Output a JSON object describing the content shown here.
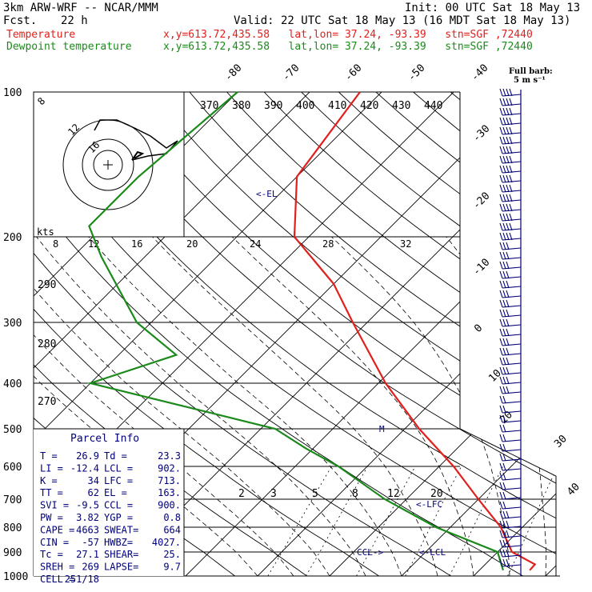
{
  "header": {
    "model": "3km ARW-WRF -- NCAR/MMM",
    "init": "Init: 00 UTC Sat 18 May 13",
    "fcst_label": "Fcst.",
    "fcst_value": "22 h",
    "valid": "Valid: 22 UTC Sat 18 May 13 (16 MDT Sat 18 May 13)",
    "temp_label": "Temperature",
    "dew_label": "Dewpoint temperature",
    "location": "x,y=613.72,435.58   lat,lon= 37.24, -93.39   stn=SGF ,72440"
  },
  "colors": {
    "temperature": "#e0201c",
    "dewpoint": "#1a8a1a",
    "wind": "#00007a",
    "grid": "#000000"
  },
  "chart_data": {
    "type": "line",
    "pressure_levels": [
      100,
      200,
      300,
      400,
      500,
      600,
      700,
      800,
      900,
      1000
    ],
    "series": [
      {
        "name": "Temperature",
        "pressure": [
          100,
          150,
          200,
          250,
          300,
          400,
          500,
          600,
          700,
          800,
          900,
          950,
          975
        ],
        "temp_c": [
          -63,
          -60,
          -52,
          -40,
          -32,
          -19,
          -8,
          2,
          10,
          17,
          22,
          26.9,
          27
        ]
      },
      {
        "name": "Dewpoint temperature",
        "pressure": [
          100,
          150,
          190,
          220,
          300,
          350,
          400,
          500,
          550,
          600,
          700,
          800,
          900,
          975
        ],
        "dewpoint_c": [
          -80,
          -82,
          -82,
          -76,
          -62,
          -52,
          -60,
          -28,
          -21,
          -14,
          -3,
          8,
          20,
          23.3
        ]
      }
    ],
    "isotherm_labels": [
      "-80",
      "-70",
      "-60",
      "-50",
      "-40",
      "-30",
      "-20",
      "-10",
      "0",
      "10",
      "20",
      "30",
      "40"
    ],
    "theta_e_labels": [
      "370",
      "380",
      "390",
      "400",
      "410",
      "420",
      "430",
      "440"
    ],
    "dry_adiabat_labels": [
      "290",
      "280",
      "270"
    ],
    "mixing_ratio_labels": [
      "2",
      "3",
      "5",
      "8",
      "12",
      "20"
    ],
    "hodograph": {
      "speed_labels": [
        "kts",
        "8",
        "12",
        "16",
        "20",
        "24",
        "28",
        "32"
      ],
      "ring_labels": [
        "8",
        "12",
        "16"
      ]
    },
    "levels": {
      "el": "<-EL",
      "lfc": "<-LFC",
      "lcl": "<-LCL",
      "ccl": "CCL->",
      "m": "M"
    },
    "wind_legend": {
      "title": "Full barb:",
      "subtitle": "5 m s⁻¹"
    }
  },
  "parcel_info": {
    "title": "Parcel Info",
    "rows": [
      [
        "T  =",
        "26.9",
        "Td =",
        "23.3"
      ],
      [
        "LI =",
        "-12.4",
        "LCL =",
        "902."
      ],
      [
        "K  =",
        "34",
        "LFC =",
        "713."
      ],
      [
        "TT =",
        "62",
        "EL  =",
        "163."
      ],
      [
        "SVI =",
        "-9.5",
        "CCL =",
        "900."
      ],
      [
        "PW =",
        "3.82",
        "YGP =",
        "0.8"
      ],
      [
        "CAPE =",
        "4663",
        "SWEAT=",
        "664"
      ],
      [
        "CIN =",
        "-57",
        "HWBZ=",
        "4027."
      ],
      [
        "Tc =",
        "27.1",
        "SHEAR=",
        "25."
      ],
      [
        "SREH =",
        "269",
        "LAPSE=",
        "9.7"
      ],
      [
        "CELL =",
        "251/18",
        "",
        ""
      ]
    ]
  }
}
